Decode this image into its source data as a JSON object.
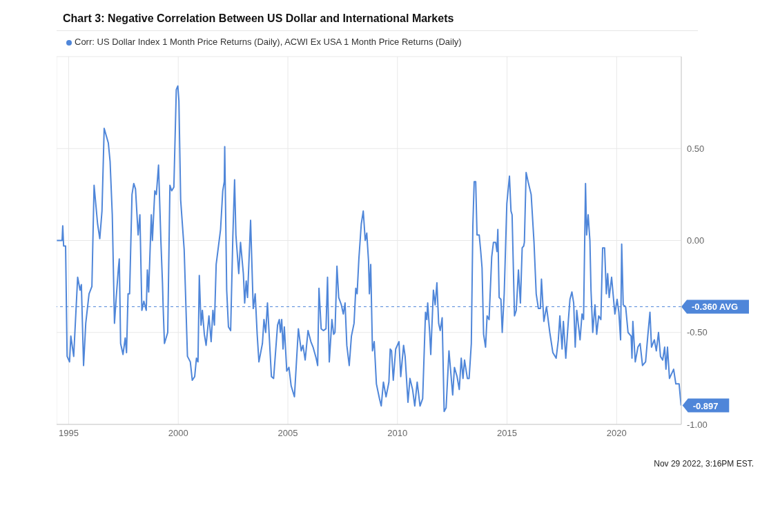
{
  "chart_data": {
    "type": "line",
    "title": "Chart 3: Negative Correlation Between US Dollar and International Markets",
    "x": [
      1994.46,
      1994.7,
      1994.73,
      1994.77,
      1994.86,
      1994.93,
      1995.04,
      1995.1,
      1995.23,
      1995.41,
      1995.52,
      1995.58,
      1995.68,
      1995.78,
      1995.93,
      1996.06,
      1996.16,
      1996.32,
      1996.42,
      1996.52,
      1996.62,
      1996.81,
      1996.89,
      1996.99,
      1997.09,
      1997.17,
      1997.27,
      1997.31,
      1997.37,
      1997.48,
      1997.58,
      1997.64,
      1997.71,
      1997.78,
      1997.89,
      1997.97,
      1998.05,
      1998.17,
      1998.25,
      1998.34,
      1998.43,
      1998.54,
      1998.59,
      1998.65,
      1998.77,
      1998.82,
      1998.93,
      1999.0,
      1999.1,
      1999.21,
      1999.28,
      1999.31,
      1999.37,
      1999.52,
      1999.62,
      1999.7,
      1999.8,
      1999.91,
      1999.98,
      2000.03,
      2000.11,
      2000.27,
      2000.42,
      2000.55,
      2000.64,
      2000.75,
      2000.83,
      2000.9,
      2000.96,
      2001.04,
      2001.1,
      2001.19,
      2001.27,
      2001.4,
      2001.5,
      2001.58,
      2001.65,
      2001.73,
      2001.93,
      2002.03,
      2002.1,
      2002.12,
      2002.21,
      2002.29,
      2002.39,
      2002.49,
      2002.57,
      2002.63,
      2002.76,
      2002.84,
      2002.97,
      2003.03,
      2003.1,
      2003.16,
      2003.3,
      2003.42,
      2003.51,
      2003.6,
      2003.68,
      2003.84,
      2003.91,
      2003.99,
      2004.07,
      2004.16,
      2004.25,
      2004.35,
      2004.53,
      2004.61,
      2004.66,
      2004.72,
      2004.78,
      2004.84,
      2004.95,
      2005.05,
      2005.15,
      2005.3,
      2005.48,
      2005.61,
      2005.69,
      2005.79,
      2005.92,
      2006.05,
      2006.15,
      2006.29,
      2006.36,
      2006.42,
      2006.52,
      2006.62,
      2006.74,
      2006.81,
      2006.89,
      2007.01,
      2007.09,
      2007.15,
      2007.24,
      2007.32,
      2007.44,
      2007.53,
      2007.61,
      2007.69,
      2007.8,
      2007.9,
      2008.02,
      2008.1,
      2008.16,
      2008.24,
      2008.35,
      2008.44,
      2008.53,
      2008.6,
      2008.68,
      2008.72,
      2008.78,
      2008.86,
      2008.94,
      2009.04,
      2009.18,
      2009.26,
      2009.36,
      2009.48,
      2009.61,
      2009.67,
      2009.73,
      2009.81,
      2009.92,
      2010.07,
      2010.15,
      2010.28,
      2010.35,
      2010.48,
      2010.57,
      2010.69,
      2010.79,
      2010.9,
      2011.03,
      2011.15,
      2011.28,
      2011.34,
      2011.38,
      2011.47,
      2011.52,
      2011.64,
      2011.72,
      2011.8,
      2011.88,
      2011.95,
      2012.04,
      2012.13,
      2012.22,
      2012.35,
      2012.52,
      2012.6,
      2012.72,
      2012.82,
      2012.91,
      2012.99,
      2013.06,
      2013.19,
      2013.27,
      2013.37,
      2013.44,
      2013.5,
      2013.57,
      2013.63,
      2013.73,
      2013.8,
      2013.86,
      2013.93,
      2014.02,
      2014.09,
      2014.18,
      2014.3,
      2014.38,
      2014.48,
      2014.54,
      2014.58,
      2014.64,
      2014.72,
      2014.78,
      2014.87,
      2014.99,
      2015.11,
      2015.18,
      2015.23,
      2015.34,
      2015.42,
      2015.52,
      2015.61,
      2015.69,
      2015.76,
      2015.79,
      2015.87,
      2015.96,
      2016.1,
      2016.23,
      2016.33,
      2016.43,
      2016.52,
      2016.57,
      2016.68,
      2016.8,
      2016.95,
      2017.09,
      2017.24,
      2017.34,
      2017.41,
      2017.51,
      2017.57,
      2017.68,
      2017.8,
      2017.87,
      2017.96,
      2018.04,
      2018.11,
      2018.18,
      2018.33,
      2018.42,
      2018.49,
      2018.58,
      2018.63,
      2018.7,
      2018.78,
      2018.83,
      2018.91,
      2019.01,
      2019.09,
      2019.18,
      2019.28,
      2019.36,
      2019.45,
      2019.53,
      2019.59,
      2019.66,
      2019.77,
      2019.92,
      2020.02,
      2020.1,
      2020.18,
      2020.23,
      2020.3,
      2020.41,
      2020.52,
      2020.66,
      2020.7,
      2020.74,
      2020.85,
      2020.97,
      2021.07,
      2021.18,
      2021.32,
      2021.42,
      2021.52,
      2021.59,
      2021.72,
      2021.81,
      2021.91,
      2022.0,
      2022.1,
      2022.19,
      2022.25,
      2022.32,
      2022.41,
      2022.6,
      2022.7,
      2022.85,
      2022.94
    ],
    "series": [
      {
        "name": "Corr: US Dollar Index 1 Month Price Returns (Daily), ACWI Ex USA 1 Month Price Returns (Daily)",
        "color": "#4f86d9",
        "values": [
          0,
          0,
          0.08,
          -0.03,
          -0.03,
          -0.63,
          -0.66,
          -0.52,
          -0.63,
          -0.2,
          -0.27,
          -0.24,
          -0.68,
          -0.45,
          -0.29,
          -0.25,
          0.3,
          0.09,
          0.01,
          0.16,
          0.61,
          0.53,
          0.43,
          0.14,
          -0.45,
          -0.31,
          -0.15,
          -0.1,
          -0.56,
          -0.62,
          -0.53,
          -0.61,
          -0.29,
          -0.29,
          0.25,
          0.31,
          0.28,
          0.03,
          0.14,
          -0.38,
          -0.33,
          -0.38,
          -0.16,
          -0.28,
          0.14,
          0,
          0.27,
          0.25,
          0.41,
          -0.01,
          -0.23,
          -0.36,
          -0.56,
          -0.5,
          0.3,
          0.27,
          0.29,
          0.82,
          0.84,
          0.76,
          0.22,
          -0.05,
          -0.63,
          -0.66,
          -0.76,
          -0.74,
          -0.64,
          -0.66,
          -0.19,
          -0.46,
          -0.38,
          -0.51,
          -0.57,
          -0.41,
          -0.55,
          -0.38,
          -0.46,
          -0.13,
          0.06,
          0.27,
          0.32,
          0.51,
          -0.27,
          -0.47,
          -0.49,
          0.02,
          0.33,
          0.03,
          -0.18,
          -0.01,
          -0.18,
          -0.34,
          -0.22,
          -0.31,
          0.11,
          -0.37,
          -0.29,
          -0.51,
          -0.66,
          -0.56,
          -0.43,
          -0.5,
          -0.34,
          -0.54,
          -0.74,
          -0.75,
          -0.46,
          -0.43,
          -0.5,
          -0.43,
          -0.59,
          -0.47,
          -0.71,
          -0.69,
          -0.79,
          -0.85,
          -0.48,
          -0.6,
          -0.57,
          -0.65,
          -0.49,
          -0.55,
          -0.58,
          -0.64,
          -0.68,
          -0.26,
          -0.48,
          -0.49,
          -0.48,
          -0.2,
          -0.66,
          -0.43,
          -0.51,
          -0.5,
          -0.14,
          -0.31,
          -0.35,
          -0.4,
          -0.34,
          -0.57,
          -0.68,
          -0.52,
          -0.45,
          -0.26,
          -0.29,
          -0.1,
          0.09,
          0.16,
          0,
          0.04,
          -0.11,
          -0.29,
          -0.13,
          -0.6,
          -0.55,
          -0.78,
          -0.86,
          -0.9,
          -0.77,
          -0.85,
          -0.77,
          -0.59,
          -0.6,
          -0.76,
          -0.59,
          -0.55,
          -0.74,
          -0.57,
          -0.63,
          -0.88,
          -0.75,
          -0.81,
          -0.9,
          -0.77,
          -0.9,
          -0.86,
          -0.39,
          -0.43,
          -0.34,
          -0.5,
          -0.62,
          -0.27,
          -0.35,
          -0.23,
          -0.45,
          -0.49,
          -0.42,
          -0.93,
          -0.91,
          -0.6,
          -0.84,
          -0.69,
          -0.74,
          -0.81,
          -0.64,
          -0.75,
          -0.65,
          -0.75,
          -0.75,
          -0.56,
          0.08,
          0.32,
          0.32,
          0.03,
          0.03,
          -0.06,
          -0.15,
          -0.51,
          -0.58,
          -0.41,
          -0.43,
          -0.09,
          -0.01,
          -0.01,
          -0.06,
          0.06,
          -0.31,
          -0.32,
          -0.5,
          -0.29,
          0.2,
          0.35,
          0.16,
          0.14,
          -0.41,
          -0.38,
          -0.16,
          -0.34,
          -0.04,
          -0.03,
          -0.01,
          0.37,
          0.32,
          0.25,
          -0.01,
          -0.29,
          -0.37,
          -0.37,
          -0.21,
          -0.44,
          -0.36,
          -0.5,
          -0.61,
          -0.64,
          -0.54,
          -0.41,
          -0.59,
          -0.44,
          -0.64,
          -0.43,
          -0.32,
          -0.28,
          -0.34,
          -0.58,
          -0.38,
          -0.54,
          -0.4,
          -0.43,
          0.31,
          0.03,
          0.14,
          0,
          -0.27,
          -0.5,
          -0.35,
          -0.51,
          -0.41,
          -0.43,
          -0.04,
          -0.04,
          -0.29,
          -0.18,
          -0.31,
          -0.2,
          -0.4,
          -0.32,
          -0.39,
          -0.54,
          -0.02,
          -0.35,
          -0.36,
          -0.5,
          -0.52,
          -0.64,
          -0.44,
          -0.66,
          -0.58,
          -0.56,
          -0.68,
          -0.66,
          -0.52,
          -0.39,
          -0.58,
          -0.54,
          -0.6,
          -0.5,
          -0.63,
          -0.65,
          -0.58,
          -0.7,
          -0.58,
          -0.75,
          -0.7,
          -0.78,
          -0.78,
          -0.897
        ]
      }
    ],
    "xlim": [
      1994.45,
      2022.95
    ],
    "xticks": [
      1995,
      2000,
      2005,
      2010,
      2015,
      2020
    ],
    "ylim": [
      -1,
      1
    ],
    "yticks": [
      {
        "value": -1,
        "label": "-1.00"
      },
      {
        "value": -0.5,
        "label": "-0.50"
      },
      {
        "value": 0,
        "label": "0.00"
      },
      {
        "value": 0.5,
        "label": "0.50"
      }
    ],
    "grid": true,
    "legend": "top left",
    "line_style": "solid",
    "ref_lines": [
      {
        "axis": "y",
        "value": -0.36,
        "label": "-0.360 AVG",
        "color": "#4f86d9",
        "line_style": "dashed"
      }
    ],
    "annotations": [
      {
        "text": "-0.897",
        "x": 2022.94,
        "y": -0.897
      },
      "Nov 29 2022, 3:16PM EST."
    ]
  }
}
